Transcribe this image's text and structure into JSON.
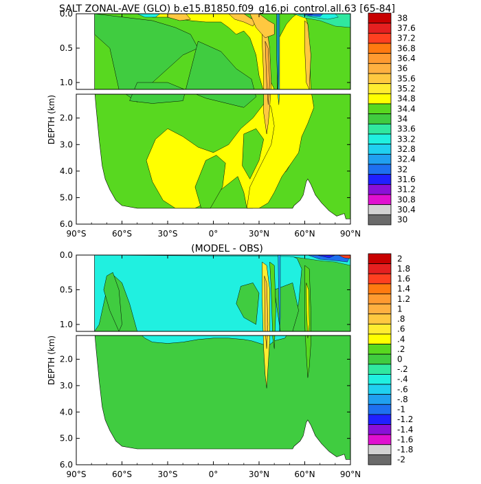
{
  "chart_data": [
    {
      "type": "heatmap",
      "title": "SALT ZONAL-AVE (GLO) b.e15.B1850.f09_g16.pi_control.all.63 [65-84]",
      "ylabel": "DEPTH (km)",
      "xlim": [
        -90,
        90
      ],
      "ylim": [
        6.0,
        0.0
      ],
      "axis_break_km": 1.1,
      "x_ticks": [
        "90°S",
        "60°S",
        "30°S",
        "0°",
        "30°N",
        "60°N",
        "90°N"
      ],
      "y_ticks_upper": [
        "0.0",
        "0.5",
        "1.0"
      ],
      "y_ticks_lower": [
        "2.0",
        "3.0",
        "4.0",
        "5.0",
        "6.0"
      ],
      "colorbar": {
        "labels": [
          "38",
          "37.6",
          "37.2",
          "36.8",
          "36.4",
          "36",
          "35.6",
          "35.2",
          "34.8",
          "34.4",
          "34",
          "33.6",
          "33.2",
          "32.8",
          "32.4",
          "32",
          "31.6",
          "31.2",
          "30.8",
          "30.4",
          "30"
        ],
        "colors": [
          "#c80000",
          "#e52020",
          "#ff4020",
          "#ff7a10",
          "#ff9a30",
          "#ffb040",
          "#ffc840",
          "#ffec30",
          "#ffff00",
          "#58d820",
          "#40cc40",
          "#30e8a0",
          "#20f0e0",
          "#20d0f0",
          "#20a0f0",
          "#1e70f0",
          "#2020ff",
          "#8a10d8",
          "#e010d0",
          "#d2d2d2",
          "#6a6a6a"
        ]
      },
      "dominant_values": {
        "deep_ocean": "34.4-34.8",
        "subtropical_upper": "35.2-35.6",
        "arctic_surface": "30-33"
      }
    },
    {
      "type": "heatmap",
      "title": "(MODEL - OBS)",
      "ylabel": "DEPTH (km)",
      "xlim": [
        -90,
        90
      ],
      "ylim": [
        6.0,
        0.0
      ],
      "axis_break_km": 1.1,
      "x_ticks": [
        "90°S",
        "60°S",
        "30°S",
        "0°",
        "30°N",
        "60°N",
        "90°N"
      ],
      "y_ticks_upper": [
        "0.0",
        "0.5",
        "1.0"
      ],
      "y_ticks_lower": [
        "2.0",
        "3.0",
        "4.0",
        "5.0",
        "6.0"
      ],
      "colorbar": {
        "labels": [
          "2",
          "1.8",
          "1.6",
          "1.4",
          "1.2",
          "1",
          ".8",
          ".6",
          ".4",
          ".2",
          "0",
          "-.2",
          "-.4",
          "-.6",
          "-.8",
          "-1",
          "-1.2",
          "-1.4",
          "-1.6",
          "-1.8",
          "-2"
        ],
        "colors": [
          "#c80000",
          "#e52020",
          "#ff4020",
          "#ff7a10",
          "#ff9a30",
          "#ffb040",
          "#ffc840",
          "#ffec30",
          "#ffff00",
          "#58d820",
          "#40cc40",
          "#30e8a0",
          "#20f0e0",
          "#20d0f0",
          "#20a0f0",
          "#1e70f0",
          "#2020ff",
          "#8a10d8",
          "#e010d0",
          "#d2d2d2",
          "#6a6a6a"
        ]
      },
      "dominant_values": {
        "deep_ocean": "0 to .2",
        "upper_southern": "-.4 to -.2",
        "mediterranean_outflow": ".4 to .8"
      }
    }
  ]
}
